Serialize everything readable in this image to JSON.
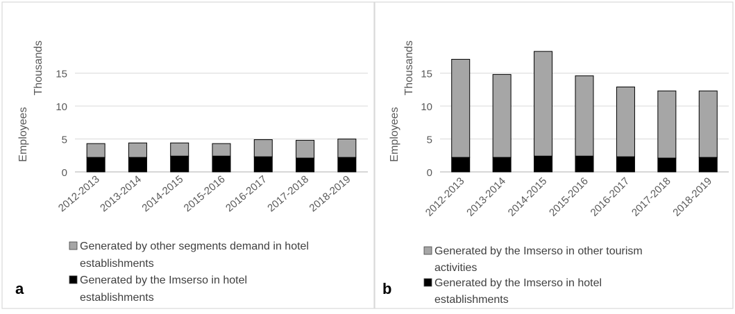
{
  "colors": {
    "gray": "#a6a6a6",
    "black": "#000000",
    "gridline": "#d9d9d9",
    "axis": "#bfbfbf",
    "frame": "#d9d9d9"
  },
  "chart_data": [
    {
      "type": "bar",
      "stacked": true,
      "panel_label": "a",
      "categories": [
        "2012-2013",
        "2013-2014",
        "2014-2015",
        "2015-2016",
        "2016-2017",
        "2017-2018",
        "2018-2019"
      ],
      "series": [
        {
          "name": "Generated by the Imserso in hotel establishments",
          "color": "#000000",
          "values": [
            2.2,
            2.2,
            2.4,
            2.4,
            2.3,
            2.1,
            2.2
          ],
          "legend_lines": [
            "Generated by the Imserso in hotel",
            "establishments"
          ]
        },
        {
          "name": "Generated by other segments demand in hotel establishments",
          "color": "#a6a6a6",
          "values": [
            2.1,
            2.2,
            2.0,
            1.9,
            2.6,
            2.7,
            2.8
          ],
          "legend_lines": [
            "Generated by other segments demand in hotel",
            "establishments"
          ]
        }
      ],
      "ylabel": "Employees",
      "yunit": "Thousands",
      "ylim": [
        0,
        20
      ],
      "yticks": [
        0,
        5,
        10,
        15
      ],
      "grid": true,
      "legend_position": "bottom"
    },
    {
      "type": "bar",
      "stacked": true,
      "panel_label": "b",
      "categories": [
        "2012-2013",
        "2013-2014",
        "2014-2015",
        "2015-2016",
        "2016-2017",
        "2017-2018",
        "2018-2019"
      ],
      "series": [
        {
          "name": "Generated by the Imserso in hotel establishments",
          "color": "#000000",
          "values": [
            2.2,
            2.2,
            2.4,
            2.4,
            2.3,
            2.1,
            2.2
          ],
          "legend_lines": [
            "Generated by the Imserso in hotel",
            "establishments"
          ]
        },
        {
          "name": "Generated by the Imserso in other tourism activities",
          "color": "#a6a6a6",
          "values": [
            14.9,
            12.6,
            15.9,
            12.2,
            10.6,
            10.2,
            10.1
          ],
          "legend_lines": [
            "Generated by the Imserso in other tourism",
            "activities"
          ]
        }
      ],
      "ylabel": "Employees",
      "yunit": "Thousands",
      "ylim": [
        0,
        20
      ],
      "yticks": [
        0,
        5,
        10,
        15
      ],
      "grid": true,
      "legend_position": "bottom"
    }
  ]
}
